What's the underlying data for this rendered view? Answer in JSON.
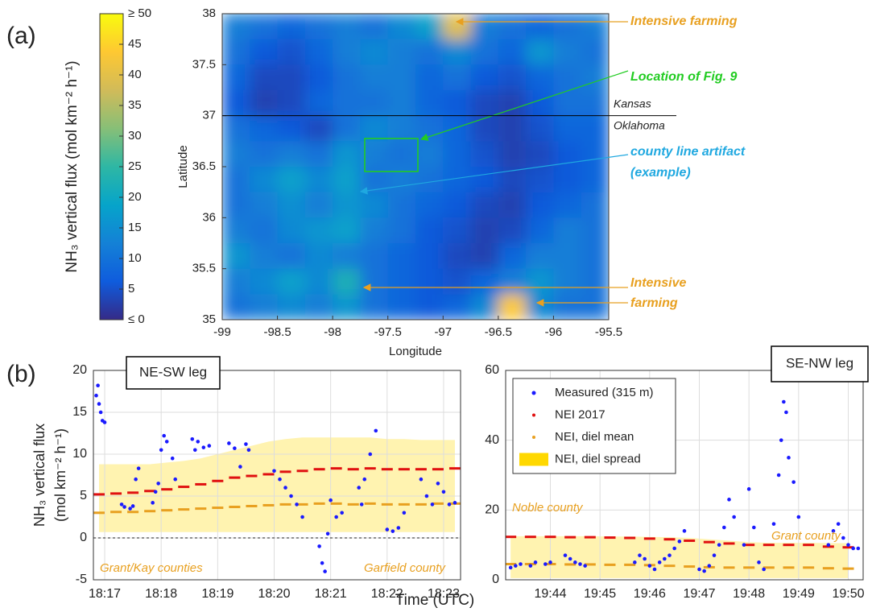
{
  "panel_labels": [
    "(a)",
    "(b)"
  ],
  "x_label_shared": "Time (UTC)",
  "chart_data": [
    {
      "type": "heatmap",
      "x_label": "Longitude",
      "y_label": "Latitude",
      "xlim": [
        -99,
        -95.5
      ],
      "ylim": [
        35,
        38
      ],
      "xticks": [
        -99,
        -98.5,
        -98,
        -97.5,
        -97,
        -96.5,
        -96,
        -95.5
      ],
      "yticks": [
        35,
        35.5,
        36,
        36.5,
        37,
        37.5,
        38
      ],
      "x": [
        -98.875,
        -98.625,
        -98.375,
        -98.125,
        -97.875,
        -97.625,
        -97.375,
        -97.125,
        -96.875,
        -96.625,
        -96.375,
        -96.125,
        -95.875,
        -95.625
      ],
      "y": [
        37.875,
        37.625,
        37.375,
        37.125,
        36.875,
        36.625,
        36.375,
        36.125,
        35.875,
        35.625,
        35.375,
        35.125
      ],
      "values": [
        [
          12,
          10,
          8,
          10,
          12,
          10,
          14,
          18,
          40,
          12,
          10,
          8,
          10,
          12
        ],
        [
          10,
          6,
          5,
          8,
          12,
          14,
          12,
          10,
          14,
          10,
          8,
          16,
          12,
          10
        ],
        [
          8,
          4,
          4,
          6,
          10,
          12,
          12,
          8,
          10,
          6,
          5,
          8,
          10,
          12
        ],
        [
          6,
          3,
          4,
          8,
          10,
          10,
          12,
          8,
          6,
          4,
          3,
          6,
          10,
          10
        ],
        [
          10,
          8,
          6,
          4,
          10,
          14,
          12,
          10,
          8,
          4,
          3,
          5,
          8,
          8
        ],
        [
          12,
          10,
          12,
          10,
          16,
          12,
          10,
          12,
          8,
          5,
          3,
          4,
          6,
          8
        ],
        [
          10,
          14,
          18,
          14,
          18,
          10,
          12,
          10,
          8,
          6,
          4,
          5,
          6,
          8
        ],
        [
          10,
          12,
          15,
          12,
          16,
          14,
          10,
          8,
          6,
          4,
          3,
          6,
          8,
          10
        ],
        [
          12,
          10,
          14,
          16,
          18,
          12,
          10,
          6,
          5,
          3,
          4,
          8,
          12,
          10
        ],
        [
          16,
          12,
          10,
          14,
          12,
          10,
          8,
          6,
          4,
          3,
          8,
          12,
          12,
          10
        ],
        [
          12,
          14,
          18,
          14,
          22,
          10,
          8,
          6,
          5,
          8,
          12,
          16,
          12,
          10
        ],
        [
          10,
          12,
          14,
          12,
          16,
          10,
          8,
          6,
          8,
          14,
          44,
          14,
          10,
          10
        ]
      ],
      "colormap": "parula",
      "colorbar": {
        "label": "NH₃ vertical flux (mol km⁻² h⁻¹)",
        "lim": [
          0,
          50
        ],
        "ticks": [
          {
            "value": 0,
            "label": "≤ 0"
          },
          5,
          10,
          15,
          20,
          25,
          30,
          35,
          40,
          45,
          {
            "value": 50,
            "label": "≥ 50"
          }
        ]
      },
      "border_lat": 37,
      "state_labels": [
        "Kansas",
        "Oklahoma"
      ],
      "annotations": [
        [
          "Intensive farming"
        ],
        [
          "Location of Fig. 9"
        ],
        [
          "county line artifact",
          "(example)"
        ],
        [
          "Intensive",
          "farming"
        ]
      ]
    },
    {
      "type": "scatter",
      "title": "NE-SW leg",
      "y_label": [
        "NH₃ vertical flux",
        "(mol km⁻² h⁻¹)"
      ],
      "xlim": [
        1096.8,
        1103.3
      ],
      "ylim": [
        -5,
        20
      ],
      "xticks": [
        {
          "value": 1097,
          "label": "18:17"
        },
        {
          "value": 1098,
          "label": "18:18"
        },
        {
          "value": 1099,
          "label": "18:19"
        },
        {
          "value": 1100,
          "label": "18:20"
        },
        {
          "value": 1101,
          "label": "18:21"
        },
        {
          "value": 1102,
          "label": "18:22"
        },
        {
          "value": 1103,
          "label": "18:23"
        }
      ],
      "yticks": [
        -5,
        0,
        5,
        10,
        15,
        20
      ],
      "grid": true,
      "hline": 0,
      "legend": false,
      "series": [
        {
          "color": "#fff3b0",
          "marker": "band",
          "x": [
            1096.9,
            1097.2,
            1097.5,
            1097.8,
            1098.1,
            1098.4,
            1098.7,
            1099.0,
            1099.3,
            1099.6,
            1099.9,
            1100.2,
            1100.5,
            1100.8,
            1101.1,
            1101.4,
            1101.7,
            1102.0,
            1102.3,
            1102.6,
            1102.9,
            1103.2
          ],
          "lower": [
            0.7,
            0.7,
            0.7,
            0.7,
            0.7,
            0.7,
            0.7,
            0.7,
            0.7,
            0.7,
            0.7,
            0.7,
            0.7,
            0.7,
            0.7,
            0.7,
            0.7,
            0.7,
            0.7,
            0.7,
            0.7,
            0.7
          ],
          "upper": [
            8.8,
            8.8,
            8.8,
            8.8,
            9.0,
            9.2,
            9.5,
            10,
            10.5,
            11,
            11.5,
            11.8,
            12,
            12,
            12,
            12,
            12,
            11.8,
            11.8,
            11.7,
            11.7,
            11.7
          ]
        },
        {
          "color": "#e8a020",
          "marker": "dash",
          "x": [
            1096.9,
            1097.2,
            1097.5,
            1097.8,
            1098.1,
            1098.4,
            1098.7,
            1099.0,
            1099.3,
            1099.6,
            1099.9,
            1100.2,
            1100.5,
            1100.8,
            1101.1,
            1101.4,
            1101.7,
            1102.0,
            1102.3,
            1102.6,
            1102.9,
            1103.2
          ],
          "values": [
            3.0,
            3.1,
            3.1,
            3.2,
            3.3,
            3.4,
            3.5,
            3.6,
            3.7,
            3.8,
            3.9,
            4.0,
            4.0,
            4.1,
            4.1,
            4.0,
            4.1,
            4.0,
            4.0,
            4.0,
            4.1,
            4.1
          ]
        },
        {
          "color": "#e01010",
          "marker": "dash",
          "x": [
            1096.9,
            1097.2,
            1097.5,
            1097.8,
            1098.1,
            1098.4,
            1098.7,
            1099.0,
            1099.3,
            1099.6,
            1099.9,
            1100.2,
            1100.5,
            1100.8,
            1101.1,
            1101.4,
            1101.7,
            1102.0,
            1102.3,
            1102.6,
            1102.9,
            1103.2
          ],
          "values": [
            5.2,
            5.3,
            5.4,
            5.6,
            5.8,
            6.1,
            6.4,
            6.8,
            7.2,
            7.4,
            7.6,
            7.9,
            8.0,
            8.2,
            8.3,
            8.2,
            8.3,
            8.2,
            8.2,
            8.2,
            8.2,
            8.3
          ]
        },
        {
          "color": "#1a1aff",
          "marker": "dot",
          "x": [
            1096.85,
            1096.88,
            1096.9,
            1096.93,
            1096.96,
            1097.0,
            1097.3,
            1097.35,
            1097.45,
            1097.5,
            1097.55,
            1097.6,
            1097.85,
            1097.9,
            1097.95,
            1098.0,
            1098.05,
            1098.1,
            1098.2,
            1098.25,
            1098.55,
            1098.6,
            1098.65,
            1098.75,
            1098.85,
            1099.2,
            1099.3,
            1099.4,
            1099.5,
            1099.55,
            1100.0,
            1100.1,
            1100.2,
            1100.3,
            1100.4,
            1100.5,
            1100.8,
            1100.85,
            1100.9,
            1100.95,
            1101.0,
            1101.1,
            1101.2,
            1101.5,
            1101.55,
            1101.6,
            1101.7,
            1101.8,
            1102.0,
            1102.1,
            1102.2,
            1102.3,
            1102.6,
            1102.7,
            1102.8,
            1102.9,
            1103.0,
            1103.1,
            1103.2
          ],
          "values": [
            17,
            18.2,
            16,
            15,
            14,
            13.8,
            4,
            3.7,
            3.5,
            3.8,
            7,
            8.3,
            4.2,
            5.5,
            6.5,
            10.5,
            12.2,
            11.5,
            9.5,
            7,
            11.8,
            10.5,
            11.5,
            10.8,
            11,
            11.3,
            10.7,
            8.5,
            11.2,
            10.5,
            8,
            7,
            6,
            5,
            4,
            2.5,
            -1,
            -3,
            -4,
            0.5,
            4.5,
            2.5,
            3,
            6,
            4,
            7,
            10,
            12.8,
            1,
            0.8,
            1.2,
            3,
            7,
            5,
            4,
            6.5,
            5.5,
            4,
            4.2
          ]
        }
      ],
      "annotations": [
        "Grant/Kay counties",
        "Garfield county"
      ]
    },
    {
      "type": "scatter",
      "title": "SE-NW leg",
      "xlim": [
        1183.1,
        1190.3
      ],
      "ylim": [
        0,
        60
      ],
      "xticks": [
        {
          "value": 1184,
          "label": "19:44"
        },
        {
          "value": 1185,
          "label": "19:45"
        },
        {
          "value": 1186,
          "label": "19:46"
        },
        {
          "value": 1187,
          "label": "19:47"
        },
        {
          "value": 1188,
          "label": "19:48"
        },
        {
          "value": 1189,
          "label": "19:49"
        },
        {
          "value": 1190,
          "label": "19:50"
        }
      ],
      "yticks": [
        0,
        20,
        40,
        60
      ],
      "grid": true,
      "hline": 0,
      "legend": "upper left",
      "series": [
        {
          "name": "NEI, diel spread",
          "color": "#fff3b0",
          "marker": "band",
          "x": [
            1183.2,
            1183.6,
            1184.0,
            1184.4,
            1184.8,
            1185.2,
            1185.6,
            1186.0,
            1186.4,
            1186.8,
            1187.2,
            1187.6,
            1188.0,
            1188.4,
            1188.8,
            1189.2,
            1189.6,
            1190.0
          ],
          "lower": [
            0.5,
            0.5,
            0.5,
            0.5,
            0.5,
            0.5,
            0.5,
            0.5,
            0.5,
            0.5,
            0.5,
            0.5,
            0.5,
            0.5,
            0.5,
            0.5,
            0.5,
            0.5
          ],
          "upper": [
            12.5,
            12.5,
            12.5,
            12.5,
            12.5,
            12.4,
            12.4,
            12.3,
            12.2,
            12.0,
            11.6,
            11.2,
            10.8,
            10.6,
            10.6,
            10.6,
            10.5,
            10.5
          ]
        },
        {
          "name": "NEI, diel mean",
          "color": "#e8a020",
          "marker": "dash",
          "x": [
            1183.2,
            1183.6,
            1184.0,
            1184.4,
            1184.8,
            1185.2,
            1185.6,
            1186.0,
            1186.4,
            1186.8,
            1187.2,
            1187.6,
            1188.0,
            1188.4,
            1188.8,
            1189.2,
            1189.6,
            1190.0
          ],
          "values": [
            4.5,
            4.5,
            4.5,
            4.4,
            4.4,
            4.3,
            4.3,
            4.2,
            4,
            3.8,
            3.6,
            3.5,
            3.5,
            3.5,
            3.5,
            3.5,
            3.3,
            3.2
          ]
        },
        {
          "name": "NEI 2017",
          "color": "#e01010",
          "marker": "dash",
          "x": [
            1183.2,
            1183.6,
            1184.0,
            1184.4,
            1184.8,
            1185.2,
            1185.6,
            1186.0,
            1186.4,
            1186.8,
            1187.2,
            1187.6,
            1188.0,
            1188.4,
            1188.8,
            1189.2,
            1189.6,
            1190.0
          ],
          "values": [
            12.3,
            12.3,
            12.3,
            12.2,
            12.2,
            12.1,
            12,
            11.8,
            11.6,
            11.2,
            10.8,
            10.4,
            10,
            10,
            10,
            10,
            9.5,
            9.3
          ]
        },
        {
          "name": "Measured (315 m)",
          "color": "#1a1aff",
          "marker": "dot",
          "x": [
            1183.2,
            1183.3,
            1183.4,
            1183.6,
            1183.7,
            1183.9,
            1184.0,
            1184.3,
            1184.4,
            1184.5,
            1184.6,
            1184.7,
            1185.7,
            1185.8,
            1185.9,
            1186.0,
            1186.1,
            1186.2,
            1186.3,
            1186.4,
            1186.5,
            1186.6,
            1186.7,
            1187.0,
            1187.1,
            1187.2,
            1187.3,
            1187.4,
            1187.5,
            1187.6,
            1187.7,
            1187.9,
            1188.0,
            1188.1,
            1188.2,
            1188.3,
            1188.5,
            1188.6,
            1188.65,
            1188.7,
            1188.75,
            1188.8,
            1188.9,
            1189.0,
            1189.6,
            1189.7,
            1189.8,
            1189.9,
            1190.0,
            1190.1,
            1190.2
          ],
          "values": [
            3.5,
            4,
            4.5,
            4,
            5,
            4.5,
            5,
            7,
            6,
            5,
            4.5,
            4,
            5,
            7,
            6,
            4,
            3,
            5,
            6,
            7,
            9,
            11,
            14,
            3,
            2.5,
            4,
            7,
            10,
            15,
            23,
            18,
            10,
            26,
            15,
            5,
            3,
            16,
            30,
            40,
            51,
            48,
            35,
            28,
            18,
            10,
            14,
            16,
            12,
            10,
            9,
            9
          ]
        }
      ],
      "legend_order": [
        3,
        2,
        1,
        0
      ],
      "annotations": [
        "Noble county",
        "Grant county"
      ]
    }
  ]
}
